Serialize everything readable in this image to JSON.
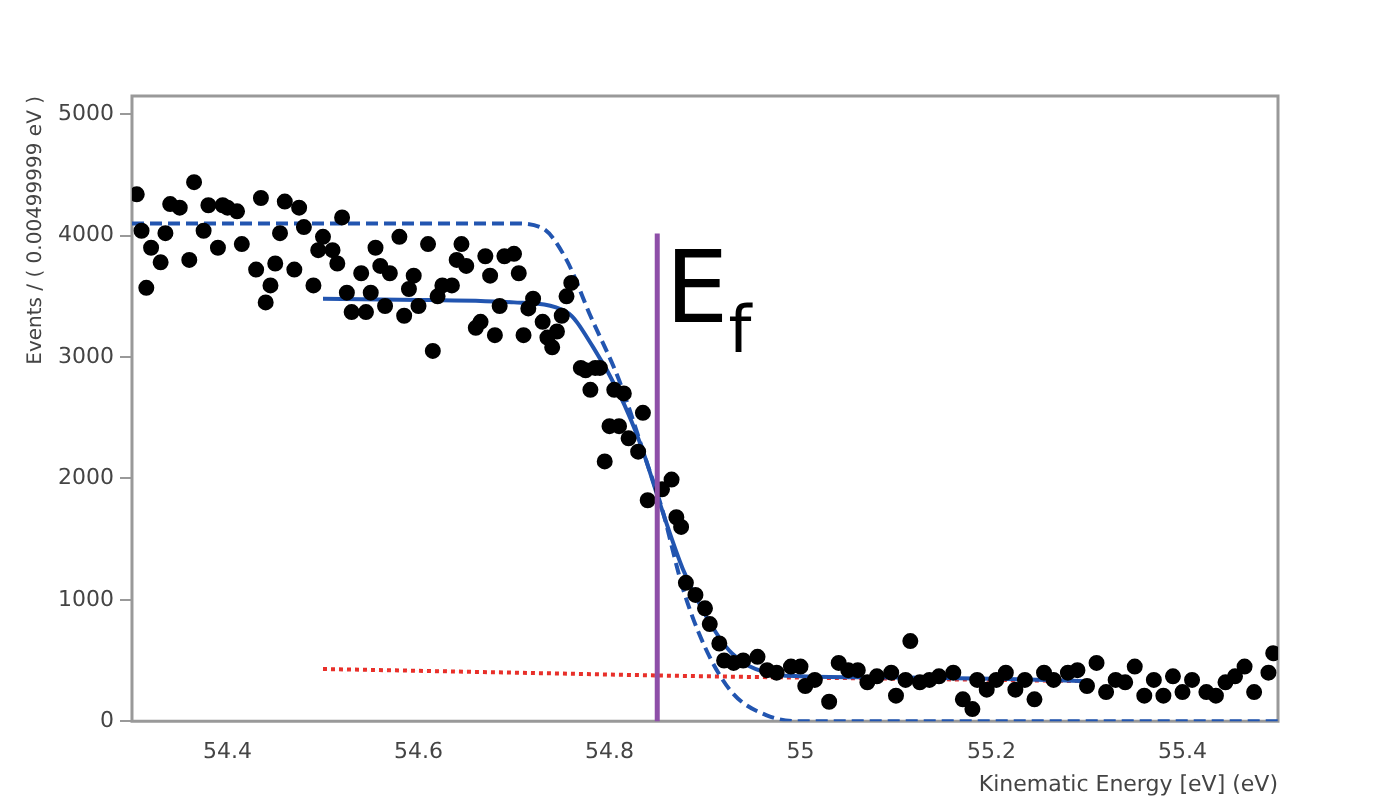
{
  "chart_data": {
    "type": "scatter",
    "xlabel": "Kinematic Energy [eV] (eV)",
    "ylabel": "Events / ( 0.00499999 eV )",
    "xlim": [
      54.3,
      55.5
    ],
    "xticks": [
      54.4,
      54.6,
      54.8,
      55,
      55.2,
      55.4
    ],
    "ylim": [
      0,
      5150
    ],
    "yticks": [
      0,
      1000,
      2000,
      3000,
      4000,
      5000
    ],
    "grid": false,
    "legend": false,
    "ref_lines": [
      {
        "axis": "x",
        "value": 54.85,
        "label": "E$_{f}$",
        "color": "#8e4fa8"
      }
    ],
    "series": [
      {
        "type": "scatter",
        "color": "#000000",
        "marker": "circle",
        "x": [
          54.305,
          54.31,
          54.315,
          54.32,
          54.33,
          54.335,
          54.34,
          54.35,
          54.36,
          54.365,
          54.375,
          54.38,
          54.39,
          54.395,
          54.4,
          54.41,
          54.415,
          54.43,
          54.435,
          54.44,
          54.445,
          54.45,
          54.455,
          54.46,
          54.47,
          54.475,
          54.48,
          54.49,
          54.495,
          54.5,
          54.51,
          54.515,
          54.52,
          54.525,
          54.53,
          54.54,
          54.545,
          54.55,
          54.555,
          54.56,
          54.565,
          54.57,
          54.58,
          54.585,
          54.59,
          54.595,
          54.6,
          54.61,
          54.615,
          54.62,
          54.625,
          54.635,
          54.64,
          54.645,
          54.65,
          54.66,
          54.665,
          54.67,
          54.675,
          54.68,
          54.685,
          54.69,
          54.7,
          54.705,
          54.71,
          54.715,
          54.72,
          54.73,
          54.735,
          54.74,
          54.745,
          54.75,
          54.755,
          54.76,
          54.77,
          54.775,
          54.78,
          54.785,
          54.79,
          54.795,
          54.8,
          54.805,
          54.81,
          54.815,
          54.82,
          54.83,
          54.835,
          54.84,
          54.855,
          54.865,
          54.87,
          54.875,
          54.88,
          54.89,
          54.9,
          54.905,
          54.915,
          54.92,
          54.93,
          54.94,
          54.955,
          54.965,
          54.975,
          54.99,
          55,
          55.005,
          55.015,
          55.03,
          55.04,
          55.05,
          55.06,
          55.07,
          55.08,
          55.095,
          55.1,
          55.11,
          55.115,
          55.125,
          55.135,
          55.145,
          55.16,
          55.17,
          55.18,
          55.185,
          55.195,
          55.205,
          55.215,
          55.225,
          55.235,
          55.245,
          55.255,
          55.265,
          55.28,
          55.29,
          55.3,
          55.31,
          55.32,
          55.33,
          55.34,
          55.35,
          55.36,
          55.37,
          55.38,
          55.39,
          55.4,
          55.41,
          55.425,
          55.435,
          55.445,
          55.455,
          55.465,
          55.475,
          55.49,
          55.495
        ],
        "values": [
          4340,
          4040,
          3570,
          3900,
          3780,
          4020,
          4260,
          4230,
          3800,
          4440,
          4040,
          4250,
          3900,
          4250,
          4230,
          4200,
          3930,
          3720,
          4310,
          3450,
          3590,
          3770,
          4020,
          4280,
          3720,
          4230,
          4070,
          3590,
          3880,
          3990,
          3880,
          3770,
          4150,
          3530,
          3370,
          3690,
          3370,
          3530,
          3900,
          3750,
          3420,
          3690,
          3990,
          3340,
          3560,
          3670,
          3420,
          3930,
          3050,
          3500,
          3590,
          3590,
          3800,
          3930,
          3750,
          3240,
          3290,
          3830,
          3670,
          3180,
          3420,
          3830,
          3850,
          3690,
          3180,
          3400,
          3480,
          3290,
          3160,
          3080,
          3210,
          3340,
          3500,
          3610,
          2910,
          2890,
          2730,
          2910,
          2910,
          2140,
          2430,
          2730,
          2430,
          2700,
          2330,
          2220,
          2540,
          1820,
          1910,
          1990,
          1680,
          1600,
          1140,
          1040,
          930,
          800,
          640,
          500,
          480,
          500,
          530,
          420,
          400,
          450,
          450,
          290,
          340,
          160,
          480,
          420,
          420,
          320,
          370,
          400,
          210,
          340,
          660,
          320,
          340,
          370,
          400,
          180,
          100,
          340,
          260,
          340,
          400,
          260,
          340,
          180,
          400,
          340,
          400,
          420,
          290,
          480,
          240,
          340,
          320,
          450,
          210,
          340,
          210,
          370,
          240,
          340,
          240,
          210,
          320,
          370,
          450,
          240,
          400,
          560
        ]
      },
      {
        "type": "line",
        "color": "#2255b0",
        "line_style": "dashed",
        "marker": "none",
        "x": [
          54.3,
          54.5,
          54.7,
          54.73,
          54.755,
          54.78,
          54.81,
          54.84,
          54.855,
          54.877,
          54.9,
          54.928,
          54.964,
          55,
          55.2,
          55.5
        ],
        "values": [
          4100,
          4100,
          4100,
          4060,
          3800,
          3340,
          2810,
          2110,
          1750,
          1090,
          610,
          240,
          50,
          0,
          0,
          0
        ]
      },
      {
        "type": "line",
        "color": "#2255b0",
        "line_style": "solid",
        "marker": "none",
        "x": [
          54.5,
          54.6,
          54.7,
          54.755,
          54.783,
          54.81,
          54.833,
          54.855,
          54.877,
          54.9,
          54.928,
          54.964,
          55,
          55.1,
          55.2,
          55.3
        ],
        "values": [
          3480,
          3470,
          3450,
          3370,
          3080,
          2700,
          2270,
          1740,
          1250,
          880,
          560,
          400,
          370,
          360,
          350,
          330
        ]
      },
      {
        "type": "line",
        "color": "#e8302a",
        "line_style": "dotted",
        "marker": "none",
        "x": [
          54.5,
          54.7,
          54.9,
          55.1,
          55.3
        ],
        "values": [
          430,
          400,
          370,
          350,
          330
        ]
      }
    ]
  }
}
